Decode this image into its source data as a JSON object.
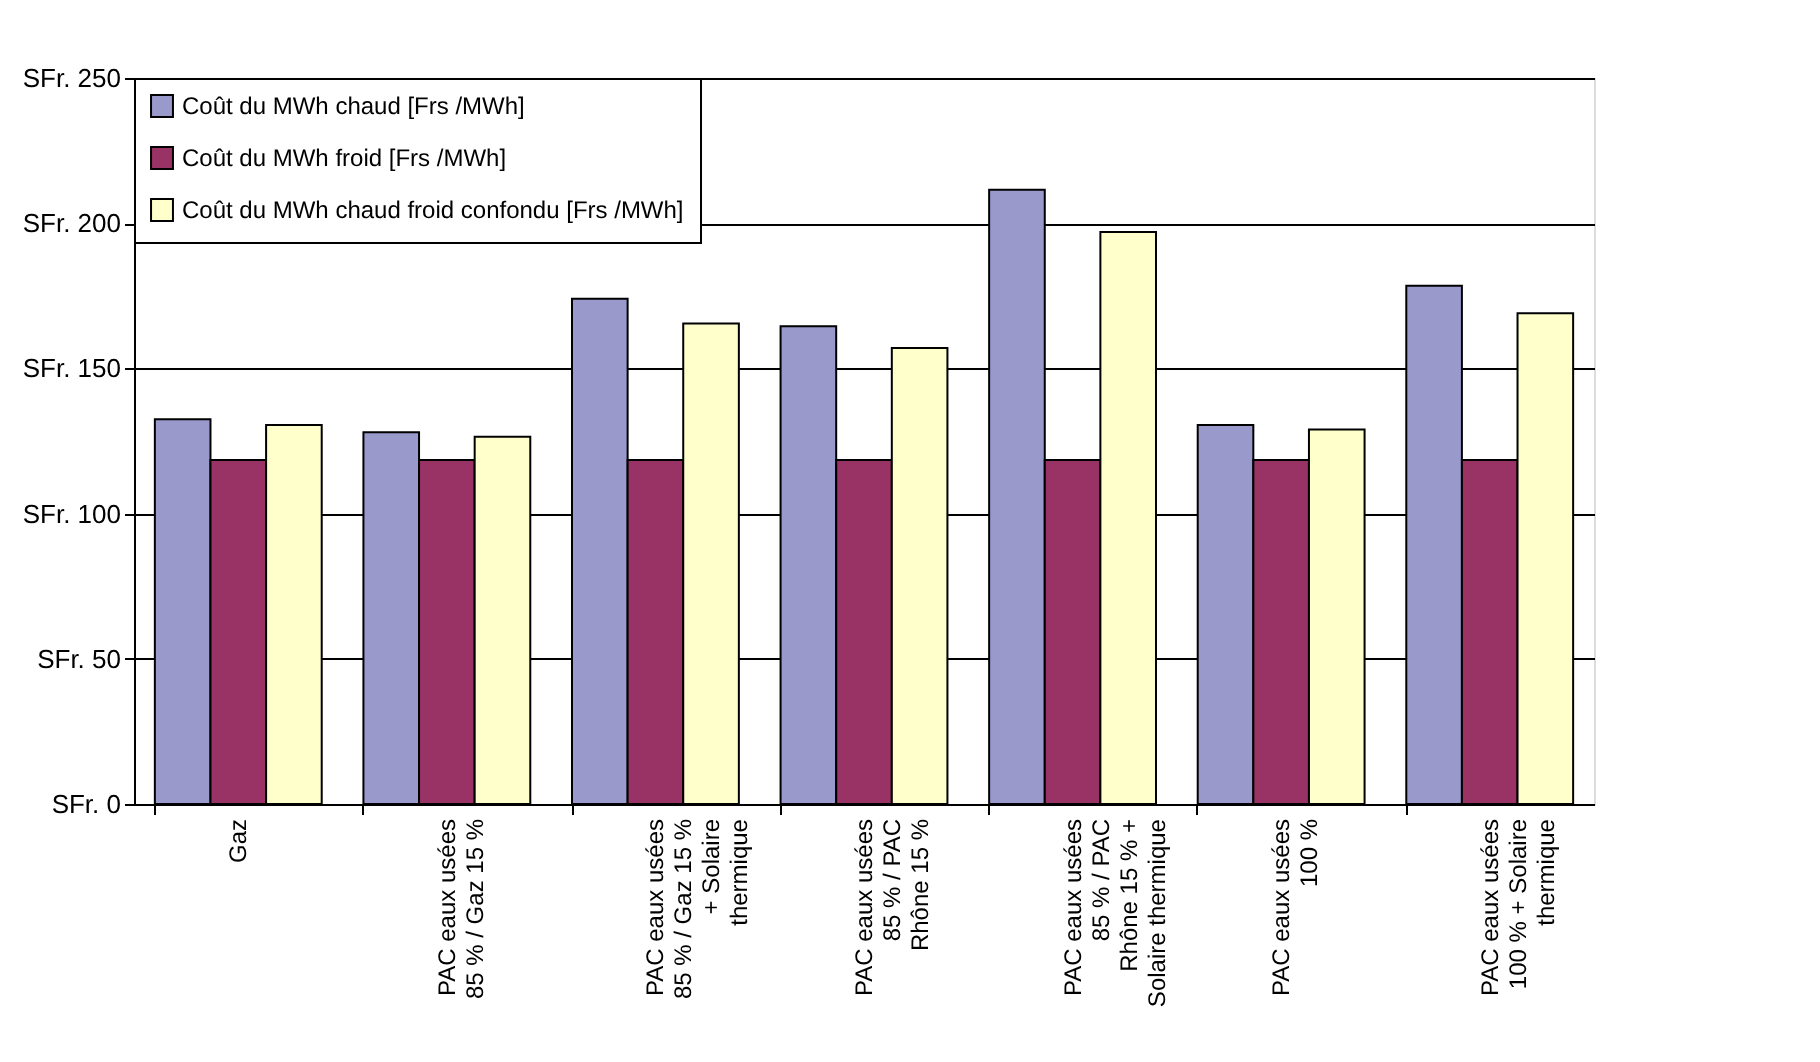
{
  "chart_data": {
    "type": "bar",
    "categories": [
      "Gaz",
      "PAC eaux usées\n85 % / Gaz 15 %",
      "PAC eaux usées\n85 % / Gaz 15 %\n+ Solaire\nthermique",
      "PAC eaux usées\n85 % / PAC\nRhône 15 %",
      "PAC eaux usées\n85 % / PAC\nRhône 15 % +\nSolaire thermique",
      "PAC eaux usées\n100 %",
      "PAC eaux usées\n100 % + Solaire\nthermique"
    ],
    "series": [
      {
        "name": "Coût du MWh chaud [Frs /MWh]",
        "color": "#9999cc",
        "values": [
          132.5,
          128,
          174,
          164.5,
          211.5,
          130.5,
          178.5
        ]
      },
      {
        "name": "Coût du MWh froid [Frs /MWh]",
        "color": "#993366",
        "values": [
          118.5,
          118.5,
          118.5,
          118.5,
          118.5,
          118.5,
          118.5
        ]
      },
      {
        "name": "Coût du MWh chaud froid confondu [Frs /MWh]",
        "color": "#ffffcc",
        "values": [
          130.5,
          126.5,
          165.5,
          157,
          197,
          129,
          169
        ]
      }
    ],
    "ylim": [
      0,
      250
    ],
    "yticks": [
      {
        "value": 0,
        "label": "SFr. 0"
      },
      {
        "value": 50,
        "label": "SFr. 50"
      },
      {
        "value": 100,
        "label": "SFr. 100"
      },
      {
        "value": 150,
        "label": "SFr. 150"
      },
      {
        "value": 200,
        "label": "SFr. 200"
      },
      {
        "value": 250,
        "label": "SFr. 250"
      }
    ],
    "grid": "y",
    "legend": "top left"
  }
}
